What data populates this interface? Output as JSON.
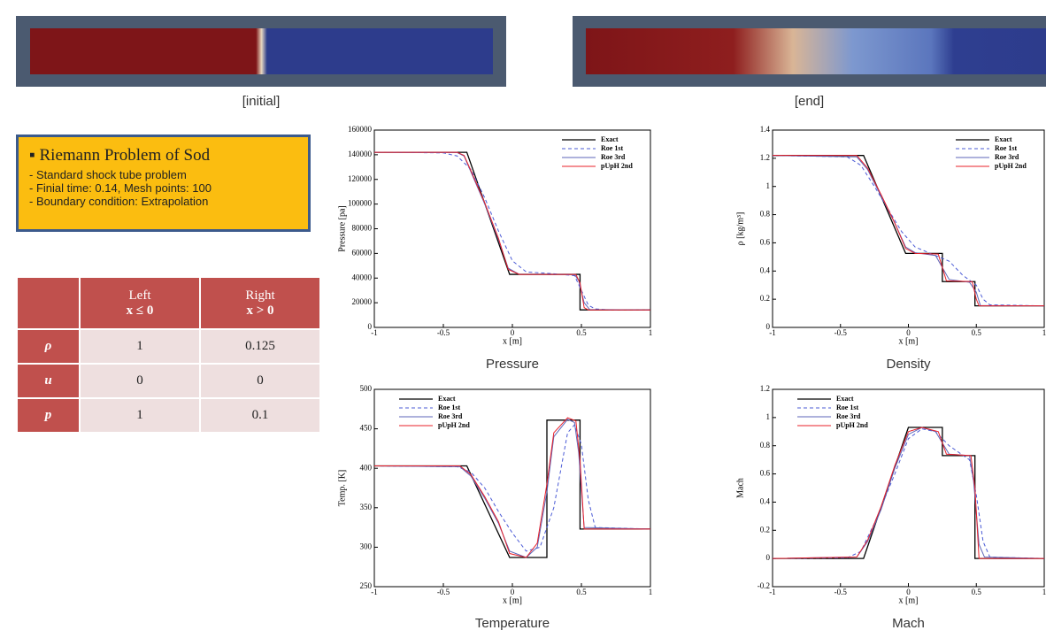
{
  "bars": {
    "initial": "[initial]",
    "end": "[end]"
  },
  "info": {
    "title": "Riemann Problem of Sod",
    "items": [
      "Standard shock tube problem",
      "Finial time: 0.14, Mesh points: 100",
      "Boundary condition: Extrapolation"
    ]
  },
  "table": {
    "columns": [
      {
        "title": "Left",
        "cond": "x ≤ 0"
      },
      {
        "title": "Right",
        "cond": "x > 0"
      }
    ],
    "rows": [
      {
        "label": "ρ",
        "cells": [
          1,
          0.125
        ]
      },
      {
        "label": "u",
        "cells": [
          0,
          0
        ]
      },
      {
        "label": "p",
        "cells": [
          1,
          0.1
        ]
      }
    ]
  },
  "chart_data": [
    {
      "type": "line",
      "title": "Pressure",
      "x_label": "x [m]",
      "y_label": "Pressure [pa]",
      "xlim": [
        -1,
        1
      ],
      "xticks": [
        -1,
        -0.5,
        0,
        0.5,
        1
      ],
      "ylim": [
        0,
        160000
      ],
      "yticks": [
        0,
        20000,
        40000,
        60000,
        80000,
        100000,
        120000,
        140000,
        160000
      ],
      "legend": "upper right",
      "series": [
        {
          "name": "Exact",
          "color": "#000000",
          "x": [
            -1,
            -0.33,
            -0.02,
            0.49,
            0.49,
            1
          ],
          "values": [
            142000,
            142000,
            43000,
            43000,
            14200,
            14200
          ]
        },
        {
          "name": "Roe 1st",
          "color": "#4b5bd6",
          "x": [
            -1,
            -0.5,
            -0.4,
            -0.3,
            -0.2,
            -0.1,
            0,
            0.1,
            0.3,
            0.45,
            0.5,
            0.55,
            0.6,
            0.7,
            1
          ],
          "values": [
            142000,
            141500,
            139000,
            128000,
            105000,
            78000,
            54000,
            45000,
            43500,
            42000,
            30000,
            18000,
            15000,
            14200,
            14200
          ]
        },
        {
          "name": "Roe 3rd",
          "color": "#5d66b8",
          "x": [
            -1,
            -0.4,
            -0.35,
            -0.3,
            -0.2,
            -0.1,
            -0.03,
            0.05,
            0.45,
            0.48,
            0.52,
            0.56,
            1
          ],
          "values": [
            142000,
            141800,
            139000,
            126000,
            100000,
            71000,
            48000,
            43000,
            43000,
            38000,
            20000,
            14500,
            14200
          ]
        },
        {
          "name": "pUpH 2nd",
          "color": "#e8202a",
          "x": [
            -1,
            -0.4,
            -0.35,
            -0.3,
            -0.2,
            -0.1,
            -0.03,
            0.05,
            0.46,
            0.49,
            0.52,
            0.55,
            1
          ],
          "values": [
            142000,
            142000,
            139500,
            127000,
            101000,
            72000,
            47000,
            43000,
            43000,
            36000,
            16000,
            14200,
            14200
          ]
        }
      ]
    },
    {
      "type": "line",
      "title": "Density",
      "x_label": "x [m]",
      "y_label": "ρ [kg/m³]",
      "xlim": [
        -1,
        1
      ],
      "xticks": [
        -1,
        -0.5,
        0,
        0.5,
        1
      ],
      "ylim": [
        0,
        1.4
      ],
      "yticks": [
        0,
        0.2,
        0.4,
        0.6,
        0.8,
        1,
        1.2,
        1.4
      ],
      "legend": "upper right",
      "series": [
        {
          "name": "Exact",
          "color": "#000000",
          "x": [
            -1,
            -0.33,
            -0.02,
            0.25,
            0.25,
            0.49,
            0.49,
            1
          ],
          "values": [
            1.22,
            1.22,
            0.525,
            0.525,
            0.325,
            0.325,
            0.153,
            0.153
          ]
        },
        {
          "name": "Roe 1st",
          "color": "#4b5bd6",
          "x": [
            -1,
            -0.45,
            -0.35,
            -0.25,
            -0.15,
            -0.05,
            0.05,
            0.15,
            0.3,
            0.4,
            0.5,
            0.55,
            0.6,
            1
          ],
          "values": [
            1.22,
            1.21,
            1.15,
            1,
            0.84,
            0.68,
            0.57,
            0.53,
            0.47,
            0.37,
            0.3,
            0.2,
            0.16,
            0.153
          ]
        },
        {
          "name": "Roe 3rd",
          "color": "#5d66b8",
          "x": [
            -1,
            -0.38,
            -0.3,
            -0.2,
            -0.1,
            -0.02,
            0.05,
            0.2,
            0.3,
            0.45,
            0.5,
            0.53,
            1
          ],
          "values": [
            1.22,
            1.21,
            1.12,
            0.93,
            0.74,
            0.57,
            0.53,
            0.51,
            0.34,
            0.32,
            0.25,
            0.155,
            0.153
          ]
        },
        {
          "name": "pUpH 2nd",
          "color": "#e8202a",
          "x": [
            -1,
            -0.38,
            -0.3,
            -0.2,
            -0.1,
            -0.02,
            0.05,
            0.22,
            0.28,
            0.47,
            0.5,
            0.52,
            1
          ],
          "values": [
            1.22,
            1.22,
            1.13,
            0.94,
            0.74,
            0.56,
            0.525,
            0.52,
            0.33,
            0.325,
            0.2,
            0.153,
            0.153
          ]
        }
      ]
    },
    {
      "type": "line",
      "title": "Temperature",
      "x_label": "x [m]",
      "y_label": "Temp. [K]",
      "xlim": [
        -1,
        1
      ],
      "xticks": [
        -1,
        -0.5,
        0,
        0.5,
        1
      ],
      "ylim": [
        250,
        500
      ],
      "yticks": [
        250,
        300,
        350,
        400,
        450,
        500
      ],
      "legend": "upper left",
      "series": [
        {
          "name": "Exact",
          "color": "#000000",
          "x": [
            -1,
            -0.33,
            -0.02,
            0.25,
            0.25,
            0.49,
            0.49,
            1
          ],
          "values": [
            403,
            403,
            287,
            287,
            461,
            461,
            323,
            323
          ]
        },
        {
          "name": "Roe 1st",
          "color": "#4b5bd6",
          "x": [
            -1,
            -0.4,
            -0.3,
            -0.2,
            -0.1,
            0,
            0.1,
            0.2,
            0.3,
            0.4,
            0.45,
            0.5,
            0.55,
            0.6,
            1
          ],
          "values": [
            403,
            402,
            395,
            375,
            345,
            318,
            295,
            300,
            350,
            445,
            455,
            430,
            360,
            325,
            323
          ]
        },
        {
          "name": "Roe 3rd",
          "color": "#5d66b8",
          "x": [
            -1,
            -0.38,
            -0.3,
            -0.2,
            -0.1,
            -0.02,
            0.1,
            0.18,
            0.25,
            0.3,
            0.4,
            0.45,
            0.48,
            0.52,
            1
          ],
          "values": [
            403,
            402,
            390,
            362,
            330,
            295,
            287,
            300,
            370,
            440,
            462,
            458,
            420,
            325,
            323
          ]
        },
        {
          "name": "pUpH 2nd",
          "color": "#e8202a",
          "x": [
            -1,
            -0.38,
            -0.3,
            -0.2,
            -0.1,
            -0.02,
            0.1,
            0.18,
            0.25,
            0.3,
            0.4,
            0.46,
            0.49,
            0.52,
            1
          ],
          "values": [
            403,
            403,
            392,
            364,
            332,
            292,
            287,
            305,
            380,
            445,
            464,
            460,
            410,
            323,
            323
          ]
        }
      ]
    },
    {
      "type": "line",
      "title": "Mach",
      "x_label": "x [m]",
      "y_label": "Mach",
      "xlim": [
        -1,
        1
      ],
      "xticks": [
        -1,
        -0.5,
        0,
        0.5,
        1
      ],
      "ylim": [
        -0.2,
        1.2
      ],
      "yticks": [
        -0.2,
        0,
        0.2,
        0.4,
        0.6,
        0.8,
        1,
        1.2
      ],
      "legend": "upper left",
      "series": [
        {
          "name": "Exact",
          "color": "#000000",
          "x": [
            -1,
            -0.33,
            0,
            0.25,
            0.25,
            0.49,
            0.49,
            1
          ],
          "values": [
            0,
            0,
            0.93,
            0.93,
            0.73,
            0.73,
            0,
            0
          ]
        },
        {
          "name": "Roe 1st",
          "color": "#4b5bd6",
          "x": [
            -1,
            -0.45,
            -0.35,
            -0.25,
            -0.1,
            0,
            0.1,
            0.2,
            0.3,
            0.45,
            0.5,
            0.55,
            0.6,
            1
          ],
          "values": [
            0,
            0.005,
            0.05,
            0.25,
            0.6,
            0.85,
            0.92,
            0.9,
            0.8,
            0.7,
            0.45,
            0.12,
            0.01,
            0
          ]
        },
        {
          "name": "Roe 3rd",
          "color": "#5d66b8",
          "x": [
            -1,
            -0.38,
            -0.3,
            -0.2,
            -0.1,
            0,
            0.1,
            0.2,
            0.3,
            0.45,
            0.48,
            0.52,
            0.56,
            1
          ],
          "values": [
            0,
            0.01,
            0.12,
            0.35,
            0.64,
            0.88,
            0.93,
            0.9,
            0.74,
            0.73,
            0.55,
            0.1,
            0.01,
            0
          ]
        },
        {
          "name": "pUpH 2nd",
          "color": "#e8202a",
          "x": [
            -1,
            -0.38,
            -0.3,
            -0.2,
            -0.1,
            0,
            0.1,
            0.22,
            0.28,
            0.46,
            0.49,
            0.52,
            1
          ],
          "values": [
            0,
            0.01,
            0.13,
            0.37,
            0.66,
            0.9,
            0.93,
            0.9,
            0.74,
            0.73,
            0.5,
            0,
            0
          ]
        }
      ]
    }
  ]
}
